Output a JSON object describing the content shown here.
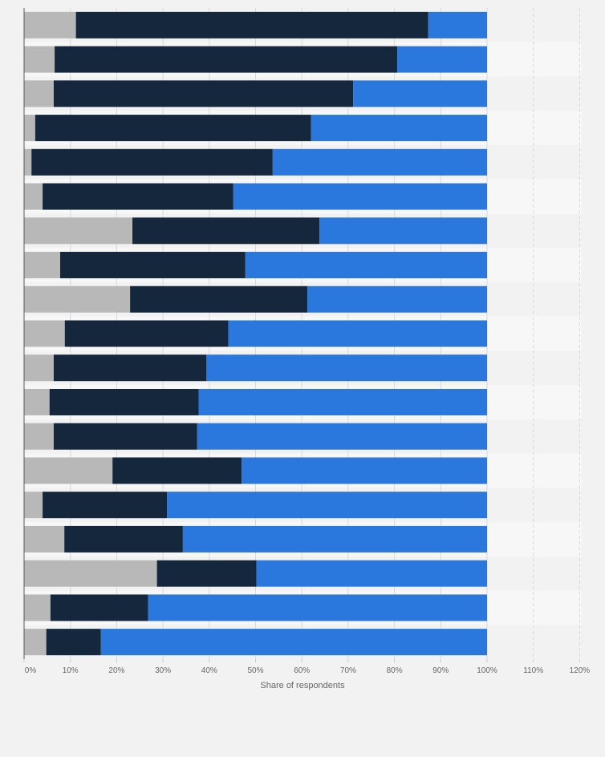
{
  "chart_data": {
    "type": "bar",
    "orientation": "horizontal",
    "stacked": true,
    "xlabel": "Share of respondents",
    "xlim": [
      0,
      120
    ],
    "x_ticks": [
      "0%",
      "10%",
      "20%",
      "30%",
      "40%",
      "50%",
      "60%",
      "70%",
      "80%",
      "90%",
      "100%",
      "110%",
      "120%"
    ],
    "grid": true,
    "legend": "none",
    "categories": [
      "",
      "",
      "",
      "",
      "",
      "",
      "",
      "",
      "",
      "",
      "",
      "",
      "",
      "",
      "",
      "",
      "",
      "",
      ""
    ],
    "series": [
      {
        "color": "#b8b8b8",
        "values": [
          11.2,
          6.6,
          6.4,
          2.4,
          1.6,
          4.0,
          23.4,
          7.8,
          22.9,
          8.8,
          6.4,
          5.5,
          6.4,
          19.1,
          4.0,
          8.7,
          28.7,
          5.7,
          4.8
        ]
      },
      {
        "color": "#14273d",
        "values": [
          76.1,
          74.0,
          64.7,
          59.6,
          52.1,
          41.2,
          40.4,
          40.0,
          38.3,
          35.3,
          33.0,
          32.2,
          31.0,
          27.9,
          26.9,
          25.6,
          21.5,
          21.1,
          11.8
        ]
      },
      {
        "color": "#2a78de",
        "values": [
          12.7,
          19.4,
          28.9,
          38.0,
          46.3,
          54.8,
          36.2,
          52.2,
          38.8,
          55.9,
          60.6,
          62.3,
          62.6,
          53.0,
          69.1,
          65.7,
          49.8,
          73.2,
          83.4
        ]
      }
    ]
  }
}
